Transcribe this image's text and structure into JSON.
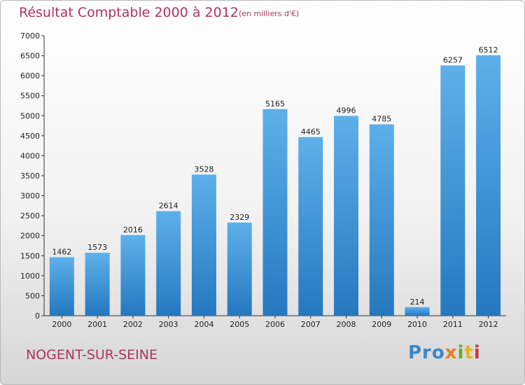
{
  "header": {
    "title": "Résultat Comptable 2000 à 2012",
    "subtitle": "(en milliers d'€)"
  },
  "footer": {
    "city": "NOGENT-SUR-SEINE",
    "logo": [
      "Pro",
      "x",
      "i",
      "t",
      "i"
    ]
  },
  "colors": {
    "title": "#b2325c",
    "bar_light": "#5eb0ea",
    "bar_dark": "#2578be"
  },
  "chart_data": {
    "type": "bar",
    "title": "Résultat Comptable 2000 à 2012",
    "subtitle": "(en milliers d'€)",
    "categories": [
      "2000",
      "2001",
      "2002",
      "2003",
      "2004",
      "2005",
      "2006",
      "2007",
      "2008",
      "2009",
      "2010",
      "2011",
      "2012"
    ],
    "values": [
      1462,
      1573,
      2016,
      2614,
      3528,
      2329,
      5165,
      4465,
      4996,
      4785,
      214,
      6257,
      6512
    ],
    "ylim": [
      0,
      7000
    ],
    "yticks": [
      0,
      500,
      1000,
      1500,
      2000,
      2500,
      3000,
      3500,
      4000,
      4500,
      5000,
      5500,
      6000,
      6500,
      7000
    ],
    "grid": false,
    "legend": "none"
  }
}
